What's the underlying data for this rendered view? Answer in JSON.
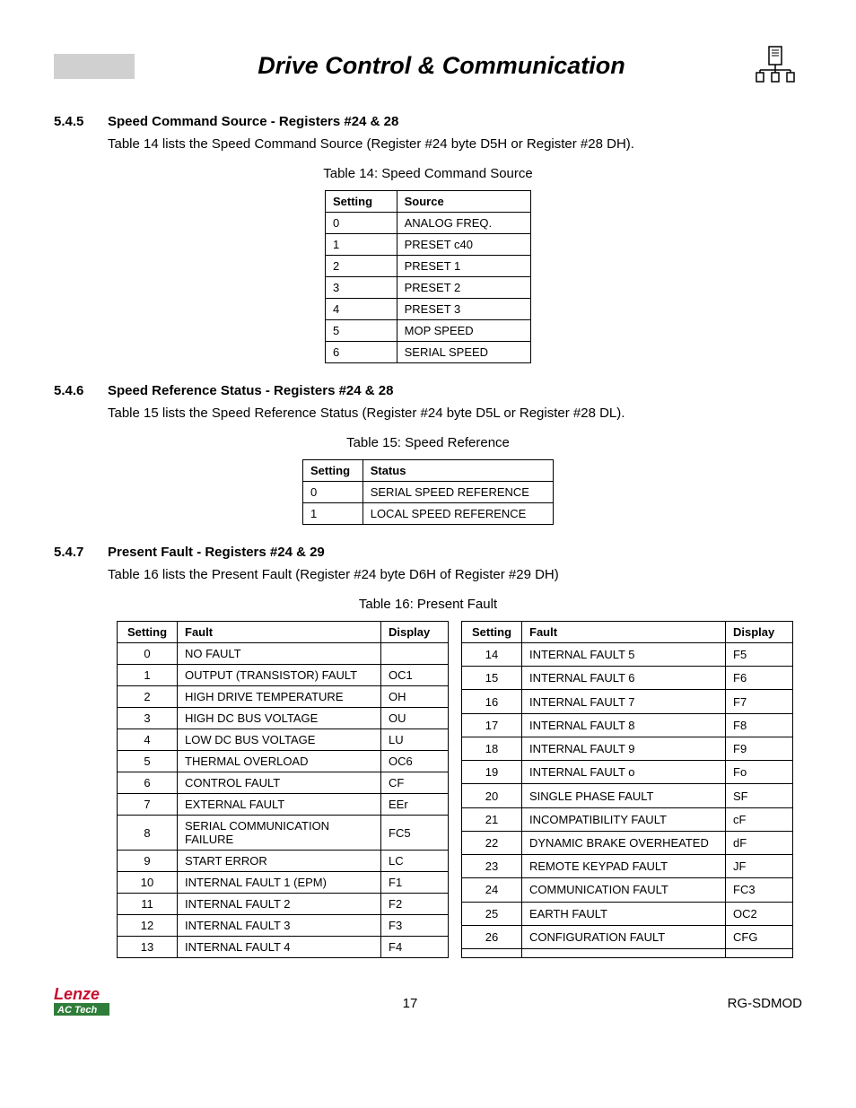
{
  "header": {
    "title": "Drive Control & Communication"
  },
  "sections": {
    "s545": {
      "num": "5.4.5",
      "title": "Speed Command Source - Registers #24 & 28",
      "body": "Table 14 lists the Speed Command Source (Register #24 byte D5H or Register #28 DH)."
    },
    "s546": {
      "num": "5.4.6",
      "title": "Speed Reference Status - Registers #24 & 28",
      "body": "Table 15 lists the Speed Reference Status (Register #24 byte D5L or Register #28 DL)."
    },
    "s547": {
      "num": "5.4.7",
      "title": "Present Fault - Registers #24 & 29",
      "body": "Table 16 lists the Present Fault (Register #24 byte D6H of Register #29 DH)"
    }
  },
  "table14": {
    "caption": "Table 14: Speed Command Source",
    "headers": [
      "Setting",
      "Source"
    ],
    "rows": [
      [
        "0",
        "ANALOG FREQ."
      ],
      [
        "1",
        "PRESET c40"
      ],
      [
        "2",
        "PRESET 1"
      ],
      [
        "3",
        "PRESET 2"
      ],
      [
        "4",
        "PRESET 3"
      ],
      [
        "5",
        "MOP SPEED"
      ],
      [
        "6",
        "SERIAL SPEED"
      ]
    ]
  },
  "table15": {
    "caption": "Table 15: Speed Reference",
    "headers": [
      "Setting",
      "Status"
    ],
    "rows": [
      [
        "0",
        "SERIAL SPEED REFERENCE"
      ],
      [
        "1",
        "LOCAL SPEED REFERENCE"
      ]
    ]
  },
  "table16": {
    "caption": "Table 16: Present Fault",
    "headers": [
      "Setting",
      "Fault",
      "Display"
    ],
    "left": [
      [
        "0",
        "NO FAULT",
        ""
      ],
      [
        "1",
        "OUTPUT (TRANSISTOR) FAULT",
        "OC1"
      ],
      [
        "2",
        "HIGH DRIVE TEMPERATURE",
        "OH"
      ],
      [
        "3",
        "HIGH DC BUS VOLTAGE",
        "OU"
      ],
      [
        "4",
        "LOW DC BUS VOLTAGE",
        "LU"
      ],
      [
        "5",
        "THERMAL OVERLOAD",
        "OC6"
      ],
      [
        "6",
        "CONTROL FAULT",
        "CF"
      ],
      [
        "7",
        "EXTERNAL FAULT",
        "EEr"
      ],
      [
        "8",
        "SERIAL COMMUNICATION FAILURE",
        "FC5"
      ],
      [
        "9",
        "START ERROR",
        "LC"
      ],
      [
        "10",
        "INTERNAL FAULT 1 (EPM)",
        "F1"
      ],
      [
        "11",
        "INTERNAL FAULT 2",
        "F2"
      ],
      [
        "12",
        "INTERNAL FAULT 3",
        "F3"
      ],
      [
        "13",
        "INTERNAL FAULT 4",
        "F4"
      ]
    ],
    "right": [
      [
        "14",
        "INTERNAL FAULT 5",
        "F5"
      ],
      [
        "15",
        "INTERNAL FAULT 6",
        "F6"
      ],
      [
        "16",
        "INTERNAL FAULT 7",
        "F7"
      ],
      [
        "17",
        "INTERNAL FAULT 8",
        "F8"
      ],
      [
        "18",
        "INTERNAL FAULT 9",
        "F9"
      ],
      [
        "19",
        "INTERNAL FAULT o",
        "Fo"
      ],
      [
        "20",
        "SINGLE PHASE FAULT",
        "SF"
      ],
      [
        "21",
        "INCOMPATIBILITY FAULT",
        "cF"
      ],
      [
        "22",
        "DYNAMIC BRAKE OVERHEATED",
        "dF"
      ],
      [
        "23",
        "REMOTE KEYPAD FAULT",
        "JF"
      ],
      [
        "24",
        "COMMUNICATION FAULT",
        "FC3"
      ],
      [
        "25",
        "EARTH FAULT",
        "OC2"
      ],
      [
        "26",
        "CONFIGURATION FAULT",
        "CFG"
      ],
      [
        "",
        "",
        ""
      ]
    ]
  },
  "footer": {
    "brand_top": "Lenze",
    "brand_bottom": "AC Tech",
    "page": "17",
    "doc": "RG-SDMOD"
  },
  "colors": {
    "header_bar": "#d0d0d0",
    "brand_red": "#c8102e",
    "brand_green": "#2f7d3a"
  }
}
